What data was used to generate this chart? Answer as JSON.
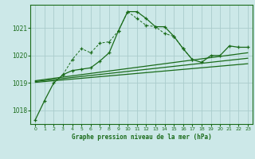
{
  "title": "Graphe pression niveau de la mer (hPa)",
  "bg_color": "#cce8e8",
  "grid_color": "#aacccc",
  "line_color": "#1a6b1a",
  "xlim": [
    -0.5,
    23.5
  ],
  "ylim": [
    1017.5,
    1021.85
  ],
  "yticks": [
    1018,
    1019,
    1020,
    1021
  ],
  "xticks": [
    0,
    1,
    2,
    3,
    4,
    5,
    6,
    7,
    8,
    9,
    10,
    11,
    12,
    13,
    14,
    15,
    16,
    17,
    18,
    19,
    20,
    21,
    22,
    23
  ],
  "main_series": [
    [
      0,
      1017.65
    ],
    [
      1,
      1018.35
    ],
    [
      2,
      1019.0
    ],
    [
      3,
      1019.3
    ],
    [
      4,
      1019.45
    ],
    [
      5,
      1019.5
    ],
    [
      6,
      1019.55
    ],
    [
      7,
      1019.8
    ],
    [
      8,
      1020.1
    ],
    [
      9,
      1020.9
    ],
    [
      10,
      1021.6
    ],
    [
      11,
      1021.6
    ],
    [
      12,
      1021.35
    ],
    [
      13,
      1021.05
    ],
    [
      14,
      1021.05
    ],
    [
      15,
      1020.7
    ],
    [
      16,
      1020.25
    ],
    [
      17,
      1019.85
    ],
    [
      18,
      1019.75
    ],
    [
      19,
      1020.0
    ],
    [
      20,
      1020.0
    ],
    [
      21,
      1020.35
    ],
    [
      22,
      1020.3
    ],
    [
      23,
      1020.3
    ]
  ],
  "dotted_series": [
    [
      3,
      1019.3
    ],
    [
      4,
      1019.85
    ],
    [
      5,
      1020.25
    ],
    [
      6,
      1020.1
    ],
    [
      7,
      1020.45
    ],
    [
      8,
      1020.5
    ],
    [
      9,
      1020.9
    ],
    [
      10,
      1021.6
    ],
    [
      11,
      1021.35
    ],
    [
      12,
      1021.1
    ],
    [
      13,
      1021.05
    ],
    [
      14,
      1020.8
    ],
    [
      15,
      1020.7
    ],
    [
      16,
      1020.25
    ],
    [
      17,
      1019.85
    ]
  ],
  "linear1": [
    [
      0,
      1019.08
    ],
    [
      23,
      1020.1
    ]
  ],
  "linear2": [
    [
      0,
      1019.05
    ],
    [
      23,
      1019.9
    ]
  ],
  "linear3": [
    [
      0,
      1019.02
    ],
    [
      23,
      1019.7
    ]
  ]
}
